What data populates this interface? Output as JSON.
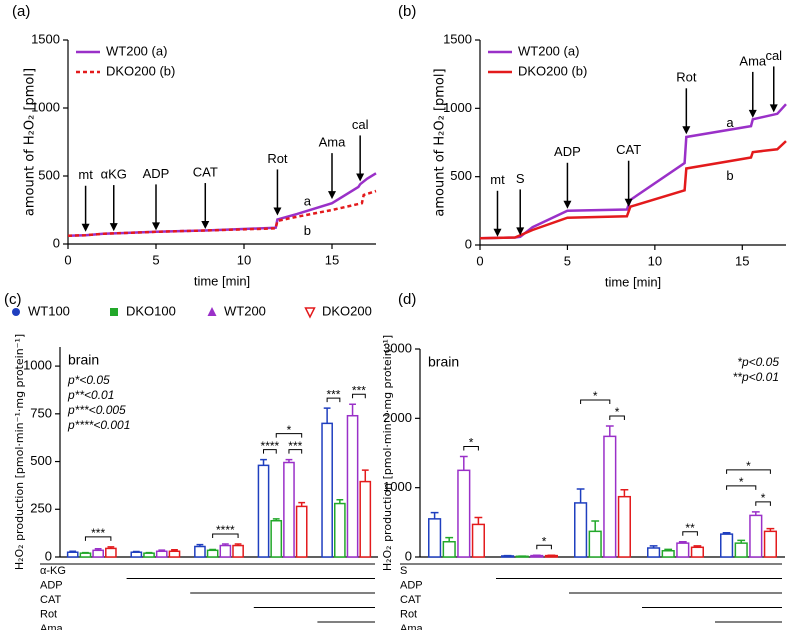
{
  "chart_data": [
    {
      "type": "line",
      "panel_label": "(a)",
      "xlabel": "time [min]",
      "ylabel": "amount of H₂O₂ [pmol]",
      "xlim": [
        0,
        17.5
      ],
      "ylim": [
        0,
        1500
      ],
      "xticks": [
        0,
        5,
        10,
        15
      ],
      "yticks": [
        0,
        500,
        1000,
        1500
      ],
      "legend": "upper left",
      "series": [
        {
          "name": "WT200 (a)",
          "color": "#9a30c8",
          "dash": false,
          "x": [
            0,
            1,
            2,
            5,
            8,
            11.8,
            11.9,
            13,
            15,
            16.5,
            16.6,
            17,
            17.5
          ],
          "values": [
            60,
            65,
            75,
            90,
            100,
            120,
            180,
            220,
            300,
            420,
            440,
            480,
            520
          ]
        },
        {
          "name": "DKO200 (b)",
          "color": "#e31a1c",
          "dash": true,
          "x": [
            0,
            1,
            2,
            5,
            8,
            11.8,
            11.9,
            13,
            15,
            16.7,
            16.8,
            17.5
          ],
          "values": [
            60,
            65,
            75,
            90,
            100,
            115,
            170,
            200,
            250,
            300,
            360,
            390
          ]
        }
      ],
      "arrows": [
        {
          "label": "mt",
          "x": 1,
          "y": 90
        },
        {
          "label": "αKG",
          "x": 2.6,
          "y": 95
        },
        {
          "label": "ADP",
          "x": 5,
          "y": 100
        },
        {
          "label": "CAT",
          "x": 7.8,
          "y": 110
        },
        {
          "label": "Rot",
          "x": 11.9,
          "y": 210
        },
        {
          "label": "Ama",
          "x": 15,
          "y": 330
        },
        {
          "label": "cal",
          "x": 16.6,
          "y": 460
        }
      ],
      "notes": [
        {
          "label": "a",
          "x": 13.6,
          "y": 310
        },
        {
          "label": "b",
          "x": 13.6,
          "y": 90
        }
      ]
    },
    {
      "type": "line",
      "panel_label": "(b)",
      "xlabel": "time [min]",
      "ylabel": "amount of H₂O₂ [pmol]",
      "xlim": [
        0,
        17.5
      ],
      "ylim": [
        0,
        1500
      ],
      "xticks": [
        0,
        5,
        10,
        15
      ],
      "yticks": [
        0,
        500,
        1000,
        1500
      ],
      "legend": "upper left",
      "series": [
        {
          "name": "WT200 (a)",
          "color": "#9a30c8",
          "dash": false,
          "x": [
            0,
            2,
            2.3,
            3,
            5,
            8.4,
            8.6,
            11.7,
            11.8,
            15.5,
            15.6,
            17,
            17.5
          ],
          "values": [
            50,
            55,
            60,
            130,
            250,
            260,
            330,
            600,
            790,
            870,
            920,
            960,
            1030
          ]
        },
        {
          "name": "DKO200 (b)",
          "color": "#e31a1c",
          "dash": false,
          "x": [
            0,
            2,
            3,
            5,
            8.4,
            8.6,
            11.7,
            11.8,
            15.5,
            15.6,
            17,
            17.5
          ],
          "values": [
            50,
            55,
            110,
            200,
            210,
            280,
            400,
            560,
            640,
            680,
            700,
            760
          ]
        }
      ],
      "arrows": [
        {
          "label": "mt",
          "x": 1,
          "y": 60
        },
        {
          "label": "S",
          "x": 2.3,
          "y": 70
        },
        {
          "label": "ADP",
          "x": 5,
          "y": 265
        },
        {
          "label": "CAT",
          "x": 8.5,
          "y": 280
        },
        {
          "label": "Rot",
          "x": 11.8,
          "y": 810
        },
        {
          "label": "Ama",
          "x": 15.6,
          "y": 930
        },
        {
          "label": "cal",
          "x": 16.8,
          "y": 970
        }
      ],
      "notes": [
        {
          "label": "a",
          "x": 14.3,
          "y": 890
        },
        {
          "label": "b",
          "x": 14.3,
          "y": 500
        }
      ]
    },
    {
      "type": "bar",
      "panel_label": "(c)",
      "ylabel": "H₂O₂ production [pmol·min⁻¹·mg protein⁻¹]",
      "ylim": [
        0,
        1100
      ],
      "yticks": [
        0,
        250,
        500,
        750,
        1000
      ],
      "inset_title": "brain",
      "inset_notes": [
        "p*<0.05",
        "p**<0.01",
        "p***<0.005",
        "p****<0.001"
      ],
      "notes_corner": "upper left",
      "series": [
        {
          "name": "WT100",
          "color": "#1f3fbf",
          "marker": "circle",
          "values": [
            25,
            25,
            55,
            480,
            700
          ],
          "errors": [
            5,
            4,
            10,
            30,
            80
          ]
        },
        {
          "name": "DKO100",
          "color": "#22a82a",
          "marker": "square",
          "values": [
            20,
            20,
            35,
            190,
            280
          ],
          "errors": [
            3,
            3,
            4,
            10,
            20
          ]
        },
        {
          "name": "WT200",
          "color": "#9a30c8",
          "marker": "triangle",
          "values": [
            35,
            30,
            60,
            495,
            740
          ],
          "errors": [
            8,
            6,
            8,
            15,
            60
          ]
        },
        {
          "name": "DKO200",
          "color": "#e31a1c",
          "marker": "triangle-down",
          "values": [
            45,
            30,
            60,
            265,
            395
          ],
          "errors": [
            8,
            8,
            8,
            20,
            60
          ]
        }
      ],
      "significance": [
        {
          "group": 0,
          "from": 1,
          "to": 3,
          "label": "***"
        },
        {
          "group": 2,
          "from": 1,
          "to": 3,
          "label": "****"
        },
        {
          "group": 3,
          "from": 0,
          "to": 1,
          "label": "****"
        },
        {
          "group": 3,
          "from": 2,
          "to": 3,
          "label": "***"
        },
        {
          "group": 3,
          "from": 1,
          "to": 3,
          "label": "*"
        },
        {
          "group": 4,
          "from": 0,
          "to": 1,
          "label": "***"
        },
        {
          "group": 4,
          "from": 2,
          "to": 3,
          "label": "***"
        }
      ],
      "conditions": [
        {
          "label": "α-KG",
          "from": 0
        },
        {
          "label": "ADP",
          "from": 1
        },
        {
          "label": "CAT",
          "from": 2
        },
        {
          "label": "Rot",
          "from": 3
        },
        {
          "label": "Ama",
          "from": 4
        }
      ]
    },
    {
      "type": "bar",
      "panel_label": "(d)",
      "ylabel": "H₂O₂ production [pmol·min⁻¹·mg protein⁻¹]",
      "ylim": [
        0,
        3000
      ],
      "yticks": [
        0,
        1000,
        2000,
        3000
      ],
      "inset_title": "brain",
      "inset_notes": [
        "*p<0.05",
        "**p<0.01"
      ],
      "notes_corner": "upper right",
      "series": [
        {
          "color": "#1f3fbf",
          "marker": "circle",
          "values": [
            550,
            15,
            780,
            130,
            330
          ],
          "errors": [
            90,
            5,
            200,
            30,
            20
          ]
        },
        {
          "color": "#22a82a",
          "marker": "square",
          "values": [
            220,
            10,
            370,
            90,
            200
          ],
          "errors": [
            60,
            3,
            150,
            20,
            40
          ]
        },
        {
          "color": "#9a30c8",
          "marker": "triangle",
          "values": [
            1250,
            20,
            1740,
            200,
            600
          ],
          "errors": [
            200,
            5,
            150,
            20,
            50
          ]
        },
        {
          "color": "#e31a1c",
          "marker": "triangle-down",
          "values": [
            470,
            20,
            870,
            140,
            370
          ],
          "errors": [
            100,
            5,
            100,
            20,
            40
          ]
        }
      ],
      "significance": [
        {
          "group": 0,
          "from": 2,
          "to": 3,
          "label": "*"
        },
        {
          "group": 1,
          "from": 2,
          "to": 3,
          "label": "*"
        },
        {
          "group": 2,
          "from": 2,
          "to": 3,
          "label": "*"
        },
        {
          "group": 2,
          "from": 0,
          "to": 2,
          "label": "*"
        },
        {
          "group": 3,
          "from": 2,
          "to": 3,
          "label": "**"
        },
        {
          "group": 4,
          "from": 2,
          "to": 3,
          "label": "*"
        },
        {
          "group": 4,
          "from": 0,
          "to": 2,
          "label": "*"
        },
        {
          "group": 4,
          "from": 0,
          "to": 3,
          "label": "*"
        }
      ],
      "conditions": [
        {
          "label": "S",
          "from": 0
        },
        {
          "label": "ADP",
          "from": 1
        },
        {
          "label": "CAT",
          "from": 2
        },
        {
          "label": "Rot",
          "from": 3
        },
        {
          "label": "Ama",
          "from": 4
        }
      ]
    }
  ]
}
